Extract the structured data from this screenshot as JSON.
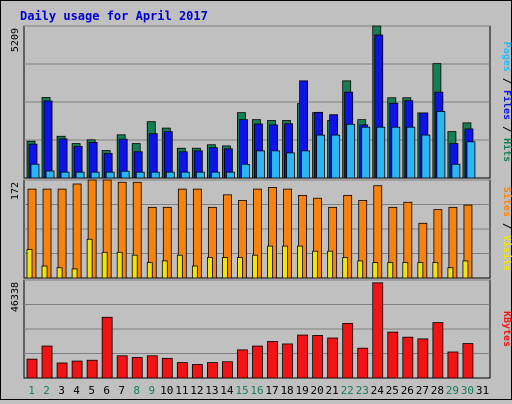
{
  "title": "Daily usage for April 2017",
  "colors": {
    "background": "#c0c0c0",
    "hits": "#157e55",
    "files": "#0d12e6",
    "pages": "#2ab6f2",
    "visits": "#f2e40a",
    "sites": "#f7830f",
    "kbytes": "#f21414",
    "title": "#0000d0",
    "day_weekday": "#000000",
    "day_weekend": "#157e55",
    "grid": "#808080"
  },
  "chart_data": [
    {
      "type": "bar",
      "panel": "hits-files-pages",
      "title": "Daily usage for April 2017",
      "ylabel_parts": [
        "Pages",
        "Files",
        "Hits"
      ],
      "ylim": [
        0,
        5209
      ],
      "ytick_label": "5209",
      "grid": true,
      "categories": [
        "1",
        "2",
        "3",
        "4",
        "5",
        "6",
        "7",
        "8",
        "9",
        "10",
        "11",
        "12",
        "13",
        "14",
        "15",
        "16",
        "17",
        "18",
        "19",
        "20",
        "21",
        "22",
        "23",
        "24",
        "25",
        "26",
        "27",
        "28",
        "29",
        "30",
        "31"
      ],
      "series": [
        {
          "name": "Hits",
          "values": [
            1260,
            2760,
            1430,
            1180,
            1310,
            940,
            1480,
            1180,
            1930,
            1710,
            1020,
            1020,
            1140,
            1100,
            2240,
            2000,
            1970,
            1970,
            2550,
            2240,
            1970,
            3330,
            2000,
            5210,
            2750,
            2750,
            2230,
            3920,
            1590,
            1890,
            0
          ]
        },
        {
          "name": "Files",
          "values": [
            1160,
            2640,
            1340,
            1080,
            1220,
            840,
            1330,
            900,
            1520,
            1590,
            900,
            930,
            1040,
            1000,
            2000,
            1850,
            1820,
            1860,
            3330,
            2250,
            2170,
            2940,
            1820,
            4900,
            2560,
            2650,
            2230,
            2940,
            1180,
            1680,
            0
          ]
        },
        {
          "name": "Pages",
          "values": [
            470,
            240,
            200,
            200,
            200,
            200,
            230,
            200,
            200,
            200,
            200,
            200,
            200,
            200,
            470,
            930,
            930,
            860,
            930,
            1470,
            1470,
            1840,
            1740,
            1740,
            1740,
            1740,
            1470,
            2280,
            470,
            1240,
            0
          ]
        }
      ]
    },
    {
      "type": "bar",
      "panel": "sites-visits",
      "ylabel_parts": [
        "Sites",
        "Visits"
      ],
      "ylim": [
        0,
        172
      ],
      "ytick_label": "172",
      "grid": true,
      "series": [
        {
          "name": "Sites",
          "values": [
            156,
            156,
            156,
            165,
            172,
            172,
            168,
            168,
            124,
            124,
            156,
            156,
            124,
            146,
            136,
            156,
            159,
            156,
            145,
            140,
            124,
            145,
            136,
            162,
            124,
            133,
            96,
            120,
            124,
            128,
            0
          ]
        },
        {
          "name": "Visits",
          "values": [
            50,
            21,
            18,
            16,
            68,
            45,
            45,
            40,
            27,
            30,
            40,
            21,
            36,
            36,
            36,
            40,
            56,
            56,
            56,
            47,
            47,
            36,
            30,
            27,
            27,
            27,
            27,
            27,
            18,
            30,
            0
          ]
        }
      ]
    },
    {
      "type": "bar",
      "panel": "kbytes",
      "ylabel_parts": [
        "KBytes"
      ],
      "ylim": [
        0,
        46338
      ],
      "ytick_label": "46338",
      "grid": true,
      "series": [
        {
          "name": "KBytes",
          "values": [
            8900,
            15100,
            7100,
            8000,
            8400,
            28700,
            10500,
            9700,
            10500,
            9300,
            7300,
            6400,
            7300,
            7700,
            13300,
            15100,
            17300,
            16100,
            20300,
            20100,
            18900,
            25800,
            14100,
            45000,
            21700,
            19300,
            18500,
            26200,
            12300,
            16300,
            0
          ]
        }
      ]
    }
  ],
  "day_labels": {
    "weekend_days": [
      "1",
      "2",
      "8",
      "9",
      "15",
      "16",
      "22",
      "23",
      "29",
      "30"
    ]
  }
}
